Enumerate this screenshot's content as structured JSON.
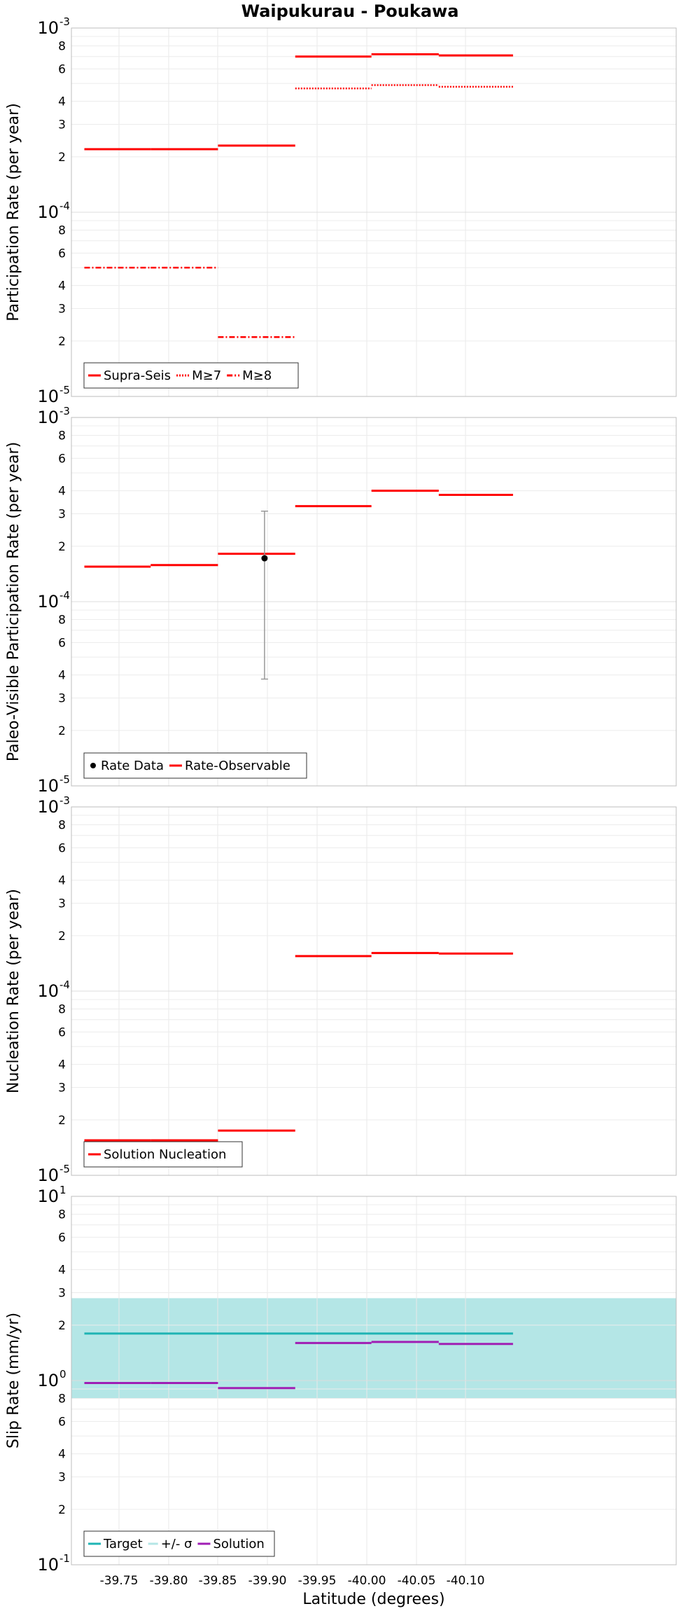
{
  "title": "Waipukurau - Poukawa",
  "xlabel": "Latitude (degrees)",
  "chart_data": [
    {
      "type": "line",
      "ylabel": "Participation Rate (per year)",
      "yscale": "log",
      "ylim": [
        1e-05,
        0.001
      ],
      "xlim": [
        -39.715,
        -40.148
      ],
      "grid": true,
      "legend_placement": "bottom-left",
      "legend": [
        "Supra-Seis",
        "M≥7",
        "M≥8"
      ],
      "series": [
        {
          "name": "Supra-Seis",
          "color": "#ff0000",
          "style": "solid",
          "segments": [
            {
              "x": [
                -39.715,
                -39.782
              ],
              "y": 0.00022
            },
            {
              "x": [
                -39.782,
                -39.85
              ],
              "y": 0.00022
            },
            {
              "x": [
                -39.85,
                -39.928
              ],
              "y": 0.00023
            },
            {
              "x": [
                -39.928,
                -40.005
              ],
              "y": 0.0007
            },
            {
              "x": [
                -40.005,
                -40.073
              ],
              "y": 0.00072
            },
            {
              "x": [
                -40.073,
                -40.148
              ],
              "y": 0.00071
            }
          ]
        },
        {
          "name": "M≥7",
          "color": "#ff0000",
          "style": "dotted",
          "segments": [
            {
              "x": [
                -39.928,
                -40.005
              ],
              "y": 0.00047
            },
            {
              "x": [
                -40.005,
                -40.073
              ],
              "y": 0.00049
            },
            {
              "x": [
                -40.073,
                -40.148
              ],
              "y": 0.00048
            }
          ]
        },
        {
          "name": "M≥8",
          "color": "#ff0000",
          "style": "dashdot",
          "segments": [
            {
              "x": [
                -39.715,
                -39.782
              ],
              "y": 5e-05
            },
            {
              "x": [
                -39.782,
                -39.85
              ],
              "y": 5e-05
            },
            {
              "x": [
                -39.85,
                -39.928
              ],
              "y": 2.1e-05
            }
          ]
        }
      ]
    },
    {
      "type": "line",
      "ylabel": "Paleo-Visible Participation Rate (per year)",
      "yscale": "log",
      "ylim": [
        1e-05,
        0.001
      ],
      "xlim": [
        -39.715,
        -40.148
      ],
      "grid": true,
      "legend_placement": "bottom-left",
      "legend": [
        "Rate Data",
        "Rate-Observable"
      ],
      "series": [
        {
          "name": "Rate-Observable",
          "color": "#ff0000",
          "style": "solid",
          "segments": [
            {
              "x": [
                -39.715,
                -39.782
              ],
              "y": 0.000155
            },
            {
              "x": [
                -39.782,
                -39.85
              ],
              "y": 0.000158
            },
            {
              "x": [
                -39.85,
                -39.928
              ],
              "y": 0.000182
            },
            {
              "x": [
                -39.928,
                -40.005
              ],
              "y": 0.00033
            },
            {
              "x": [
                -40.005,
                -40.073
              ],
              "y": 0.0004
            },
            {
              "x": [
                -40.073,
                -40.148
              ],
              "y": 0.00038
            }
          ]
        },
        {
          "name": "Rate Data",
          "color": "#000000",
          "style": "point",
          "points": [
            {
              "x": -39.897,
              "y": 0.000172,
              "ylow": 3.8e-05,
              "yhigh": 0.00031
            }
          ]
        }
      ]
    },
    {
      "type": "line",
      "ylabel": "Nucleation Rate (per year)",
      "yscale": "log",
      "ylim": [
        1e-05,
        0.001
      ],
      "xlim": [
        -39.715,
        -40.148
      ],
      "grid": true,
      "legend_placement": "bottom-left",
      "legend": [
        "Solution Nucleation"
      ],
      "series": [
        {
          "name": "Solution Nucleation",
          "color": "#ff0000",
          "style": "solid",
          "segments": [
            {
              "x": [
                -39.715,
                -39.782
              ],
              "y": 1.55e-05
            },
            {
              "x": [
                -39.782,
                -39.85
              ],
              "y": 1.55e-05
            },
            {
              "x": [
                -39.85,
                -39.928
              ],
              "y": 1.75e-05
            },
            {
              "x": [
                -39.928,
                -40.005
              ],
              "y": 0.000155
            },
            {
              "x": [
                -40.005,
                -40.073
              ],
              "y": 0.000161
            },
            {
              "x": [
                -40.073,
                -40.148
              ],
              "y": 0.00016
            }
          ]
        }
      ]
    },
    {
      "type": "line",
      "ylabel": "Slip Rate (mm/yr)",
      "yscale": "log",
      "ylim": [
        0.1,
        10
      ],
      "xlim": [
        -39.715,
        -40.148
      ],
      "grid": true,
      "legend_placement": "bottom-left",
      "legend": [
        "Target",
        "+/- σ",
        "Solution"
      ],
      "band": {
        "name": "+/- σ",
        "color": "#b4e6e6",
        "ylow": 0.8,
        "yhigh": 2.8
      },
      "series": [
        {
          "name": "Target",
          "color": "#1eb4b4",
          "style": "solid",
          "segments": [
            {
              "x": [
                -39.715,
                -40.148
              ],
              "y": 1.8
            }
          ]
        },
        {
          "name": "Solution",
          "color": "#a01eb4",
          "style": "solid",
          "segments": [
            {
              "x": [
                -39.715,
                -39.782
              ],
              "y": 0.97
            },
            {
              "x": [
                -39.782,
                -39.85
              ],
              "y": 0.97
            },
            {
              "x": [
                -39.85,
                -39.928
              ],
              "y": 0.91
            },
            {
              "x": [
                -39.928,
                -40.005
              ],
              "y": 1.6
            },
            {
              "x": [
                -40.005,
                -40.073
              ],
              "y": 1.62
            },
            {
              "x": [
                -40.073,
                -40.148
              ],
              "y": 1.58
            }
          ]
        }
      ]
    }
  ],
  "x_ticks": [
    "-39.75",
    "-39.80",
    "-39.85",
    "-39.90",
    "-39.95",
    "-40.00",
    "-40.05",
    "-40.10"
  ]
}
